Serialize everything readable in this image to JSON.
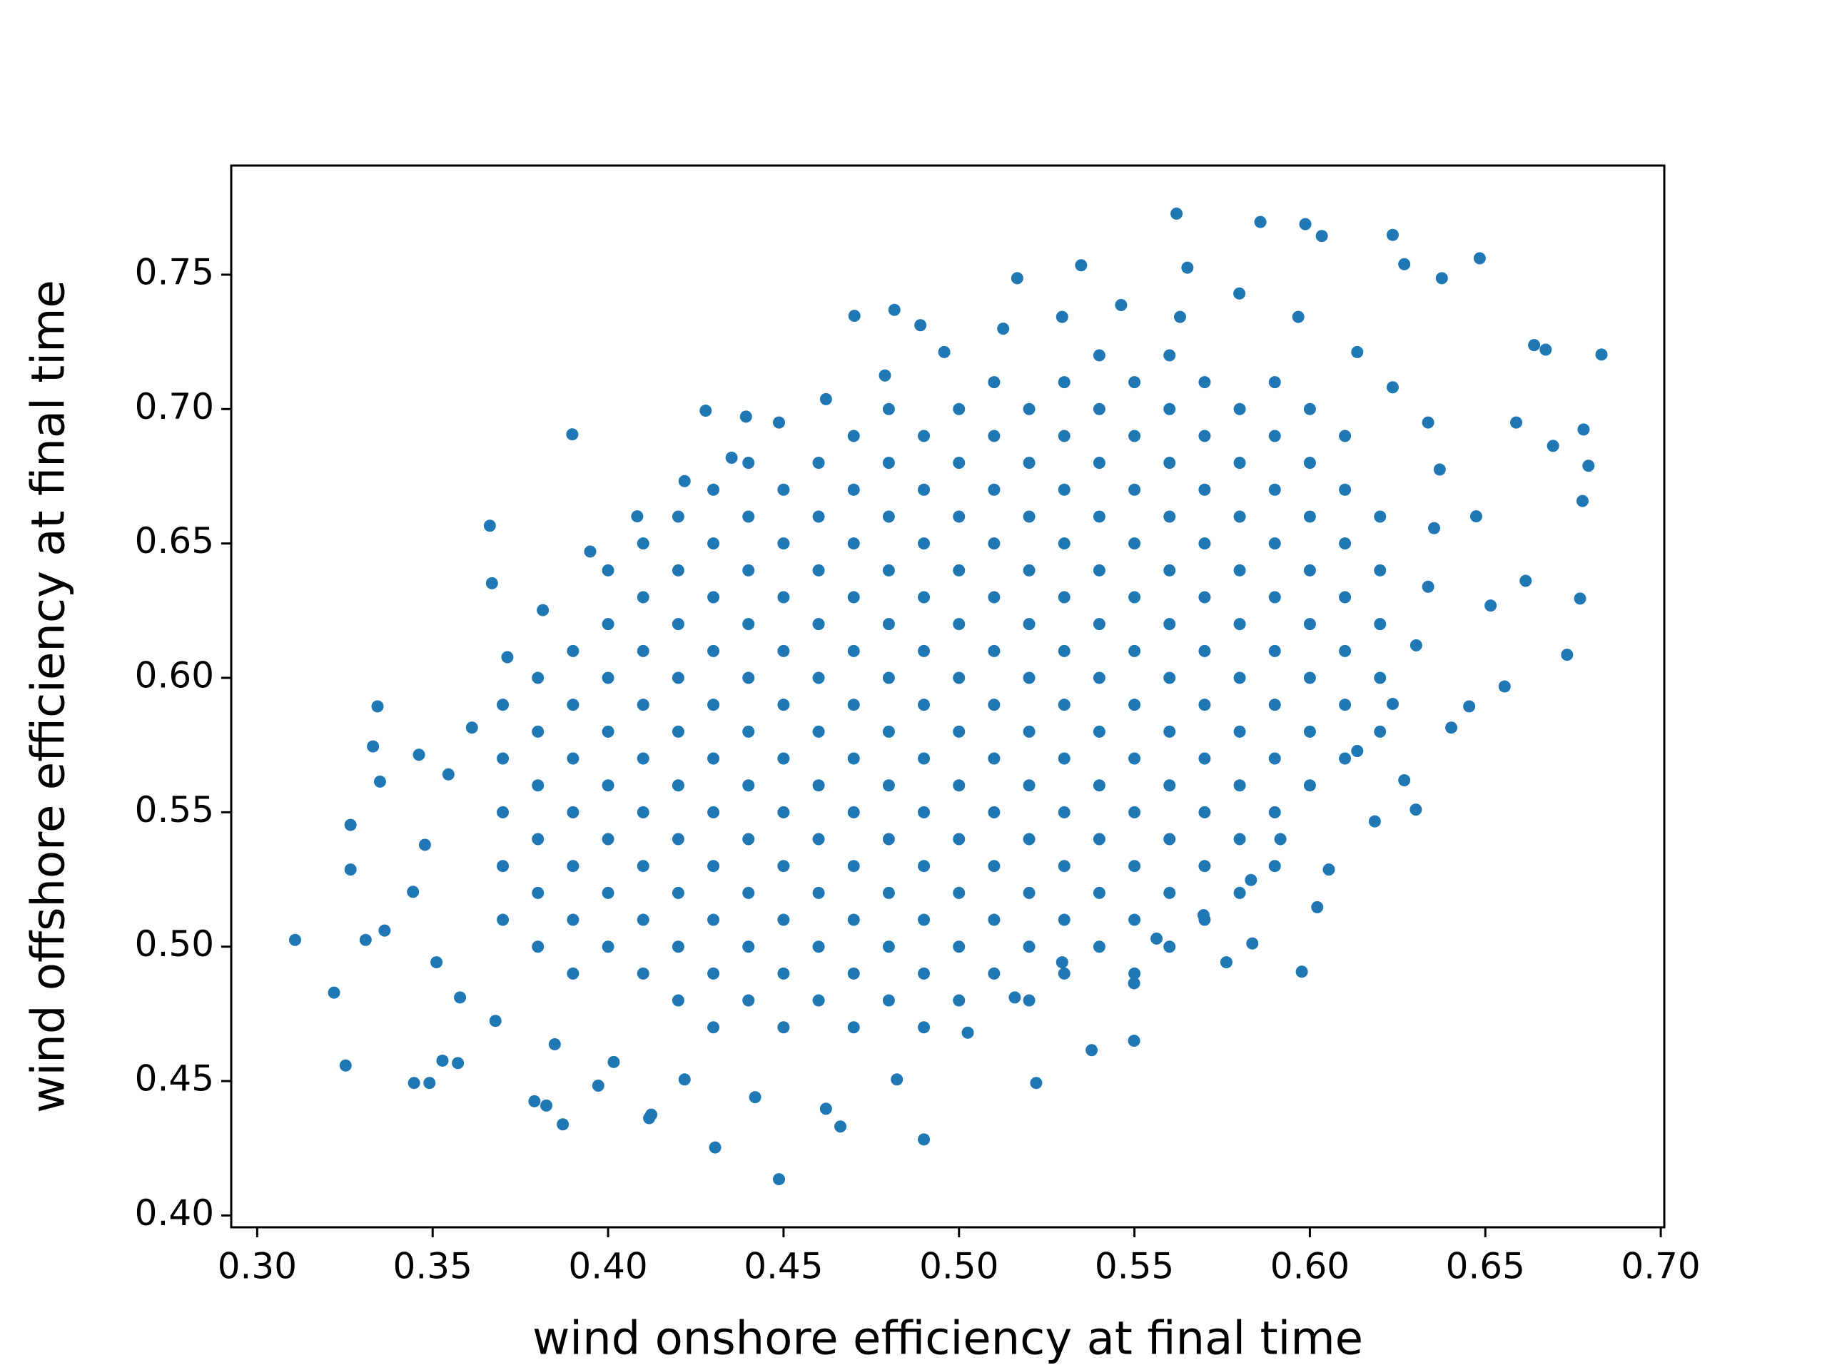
{
  "chart_data": {
    "type": "scatter",
    "x_label": "wind onshore efficiency at final time",
    "y_label": "wind offshore efficiency at final time",
    "color": "#1f77b4",
    "xlim": [
      0.2926,
      0.701
    ],
    "ylim": [
      0.3956,
      0.7906
    ],
    "xticks": [
      {
        "value": 0.3,
        "label": "0.30"
      },
      {
        "value": 0.35,
        "label": "0.35"
      },
      {
        "value": 0.4,
        "label": "0.40"
      },
      {
        "value": 0.45,
        "label": "0.45"
      },
      {
        "value": 0.5,
        "label": "0.50"
      },
      {
        "value": 0.55,
        "label": "0.55"
      },
      {
        "value": 0.6,
        "label": "0.60"
      },
      {
        "value": 0.65,
        "label": "0.65"
      },
      {
        "value": 0.7,
        "label": "0.70"
      }
    ],
    "yticks": [
      {
        "value": 0.4,
        "label": "0.40"
      },
      {
        "value": 0.45,
        "label": "0.45"
      },
      {
        "value": 0.5,
        "label": "0.50"
      },
      {
        "value": 0.55,
        "label": "0.55"
      },
      {
        "value": 0.6,
        "label": "0.60"
      },
      {
        "value": 0.65,
        "label": "0.65"
      },
      {
        "value": 0.7,
        "label": "0.70"
      },
      {
        "value": 0.75,
        "label": "0.75"
      }
    ],
    "grid": false,
    "x": [
      0.37,
      0.37,
      0.37,
      0.37,
      0.37,
      0.38,
      0.38,
      0.38,
      0.38,
      0.38,
      0.38,
      0.39,
      0.39,
      0.39,
      0.39,
      0.39,
      0.39,
      0.39,
      0.4,
      0.4,
      0.4,
      0.4,
      0.4,
      0.4,
      0.4,
      0.4,
      0.41,
      0.41,
      0.41,
      0.41,
      0.41,
      0.41,
      0.41,
      0.41,
      0.41,
      0.42,
      0.42,
      0.42,
      0.42,
      0.42,
      0.42,
      0.42,
      0.42,
      0.42,
      0.42,
      0.43,
      0.43,
      0.43,
      0.43,
      0.43,
      0.43,
      0.43,
      0.43,
      0.43,
      0.43,
      0.43,
      0.44,
      0.44,
      0.44,
      0.44,
      0.44,
      0.44,
      0.44,
      0.44,
      0.44,
      0.44,
      0.44,
      0.45,
      0.45,
      0.45,
      0.45,
      0.45,
      0.45,
      0.45,
      0.45,
      0.45,
      0.45,
      0.45,
      0.46,
      0.46,
      0.46,
      0.46,
      0.46,
      0.46,
      0.46,
      0.46,
      0.46,
      0.46,
      0.46,
      0.47,
      0.47,
      0.47,
      0.47,
      0.47,
      0.47,
      0.47,
      0.47,
      0.47,
      0.47,
      0.47,
      0.47,
      0.48,
      0.48,
      0.48,
      0.48,
      0.48,
      0.48,
      0.48,
      0.48,
      0.48,
      0.48,
      0.48,
      0.48,
      0.49,
      0.49,
      0.49,
      0.49,
      0.49,
      0.49,
      0.49,
      0.49,
      0.49,
      0.49,
      0.49,
      0.49,
      0.5,
      0.5,
      0.5,
      0.5,
      0.5,
      0.5,
      0.5,
      0.5,
      0.5,
      0.5,
      0.5,
      0.5,
      0.51,
      0.51,
      0.51,
      0.51,
      0.51,
      0.51,
      0.51,
      0.51,
      0.51,
      0.51,
      0.51,
      0.51,
      0.52,
      0.52,
      0.52,
      0.52,
      0.52,
      0.52,
      0.52,
      0.52,
      0.52,
      0.52,
      0.52,
      0.52,
      0.53,
      0.53,
      0.53,
      0.53,
      0.53,
      0.53,
      0.53,
      0.53,
      0.53,
      0.53,
      0.53,
      0.53,
      0.54,
      0.54,
      0.54,
      0.54,
      0.54,
      0.54,
      0.54,
      0.54,
      0.54,
      0.54,
      0.54,
      0.54,
      0.55,
      0.55,
      0.55,
      0.55,
      0.55,
      0.55,
      0.55,
      0.55,
      0.55,
      0.55,
      0.55,
      0.55,
      0.56,
      0.56,
      0.56,
      0.56,
      0.56,
      0.56,
      0.56,
      0.56,
      0.56,
      0.56,
      0.56,
      0.56,
      0.57,
      0.57,
      0.57,
      0.57,
      0.57,
      0.57,
      0.57,
      0.57,
      0.57,
      0.57,
      0.57,
      0.58,
      0.58,
      0.58,
      0.58,
      0.58,
      0.58,
      0.58,
      0.58,
      0.58,
      0.58,
      0.59,
      0.59,
      0.59,
      0.59,
      0.59,
      0.59,
      0.59,
      0.59,
      0.59,
      0.59,
      0.6,
      0.6,
      0.6,
      0.6,
      0.6,
      0.6,
      0.6,
      0.6,
      0.61,
      0.61,
      0.61,
      0.61,
      0.61,
      0.61,
      0.61,
      0.62,
      0.62,
      0.62,
      0.62,
      0.62,
      0.3108,
      0.3219,
      0.3252,
      0.3266,
      0.3266,
      0.3343,
      0.333,
      0.335,
      0.3309,
      0.3363,
      0.3447,
      0.3491,
      0.3461,
      0.3528,
      0.3572,
      0.3663,
      0.3669,
      0.379,
      0.3824,
      0.3871,
      0.3898,
      0.3972,
      0.4123,
      0.4117,
      0.4278,
      0.4305,
      0.4393,
      0.4487,
      0.4662,
      0.49,
      0.4702,
      0.4816,
      0.489,
      0.5166,
      0.522,
      0.5348,
      0.5378,
      0.5499,
      0.5499,
      0.562,
      0.5651,
      0.5762,
      0.5836,
      0.5859,
      0.5977,
      0.6021,
      0.5987,
      0.6034,
      0.6054,
      0.6236,
      0.6269,
      0.6376,
      0.6484,
      0.6555,
      0.6615,
      0.6639,
      0.6672,
      0.6733,
      0.677,
      0.6777,
      0.6794,
      0.6831,
      0.678,
      0.6693,
      0.6588,
      0.6454,
      0.6515,
      0.6474,
      0.6403,
      0.6302,
      0.6269,
      0.6185,
      0.5916,
      0.5832,
      0.5697,
      0.5563,
      0.5294,
      0.5159,
      0.5025,
      0.4823,
      0.4621,
      0.4419,
      0.4218,
      0.4016,
      0.3848,
      0.3679,
      0.3578,
      0.3511,
      0.3444,
      0.3478,
      0.3545,
      0.3612,
      0.3713,
      0.3814,
      0.3949,
      0.4083,
      0.4218,
      0.4352,
      0.4487,
      0.4621,
      0.4789,
      0.4958,
      0.5126,
      0.5294,
      0.5462,
      0.563,
      0.5799,
      0.5967,
      0.6135,
      0.6236,
      0.6337,
      0.637,
      0.6354,
      0.6337,
      0.6303,
      0.6236,
      0.6135
    ],
    "values": [
      0.51,
      0.53,
      0.55,
      0.57,
      0.59,
      0.5,
      0.52,
      0.54,
      0.56,
      0.58,
      0.6,
      0.49,
      0.51,
      0.53,
      0.55,
      0.57,
      0.59,
      0.61,
      0.5,
      0.52,
      0.54,
      0.56,
      0.58,
      0.6,
      0.62,
      0.64,
      0.49,
      0.51,
      0.53,
      0.55,
      0.57,
      0.59,
      0.61,
      0.63,
      0.65,
      0.48,
      0.5,
      0.52,
      0.54,
      0.56,
      0.58,
      0.6,
      0.62,
      0.64,
      0.66,
      0.47,
      0.49,
      0.51,
      0.53,
      0.55,
      0.57,
      0.59,
      0.61,
      0.63,
      0.65,
      0.67,
      0.48,
      0.5,
      0.52,
      0.54,
      0.56,
      0.58,
      0.6,
      0.62,
      0.64,
      0.66,
      0.68,
      0.47,
      0.49,
      0.51,
      0.53,
      0.55,
      0.57,
      0.59,
      0.61,
      0.63,
      0.65,
      0.67,
      0.48,
      0.5,
      0.52,
      0.54,
      0.56,
      0.58,
      0.6,
      0.62,
      0.64,
      0.66,
      0.68,
      0.47,
      0.49,
      0.51,
      0.53,
      0.55,
      0.57,
      0.59,
      0.61,
      0.63,
      0.65,
      0.67,
      0.69,
      0.48,
      0.5,
      0.52,
      0.54,
      0.56,
      0.58,
      0.6,
      0.62,
      0.64,
      0.66,
      0.68,
      0.7,
      0.47,
      0.49,
      0.51,
      0.53,
      0.55,
      0.57,
      0.59,
      0.61,
      0.63,
      0.65,
      0.67,
      0.69,
      0.48,
      0.5,
      0.52,
      0.54,
      0.56,
      0.58,
      0.6,
      0.62,
      0.64,
      0.66,
      0.68,
      0.7,
      0.49,
      0.51,
      0.53,
      0.55,
      0.57,
      0.59,
      0.61,
      0.63,
      0.65,
      0.67,
      0.69,
      0.71,
      0.48,
      0.5,
      0.52,
      0.54,
      0.56,
      0.58,
      0.6,
      0.62,
      0.64,
      0.66,
      0.68,
      0.7,
      0.49,
      0.51,
      0.53,
      0.55,
      0.57,
      0.59,
      0.61,
      0.63,
      0.65,
      0.67,
      0.69,
      0.71,
      0.5,
      0.52,
      0.54,
      0.56,
      0.58,
      0.6,
      0.62,
      0.64,
      0.66,
      0.68,
      0.7,
      0.72,
      0.49,
      0.51,
      0.53,
      0.55,
      0.57,
      0.59,
      0.61,
      0.63,
      0.65,
      0.67,
      0.69,
      0.71,
      0.5,
      0.52,
      0.54,
      0.56,
      0.58,
      0.6,
      0.62,
      0.64,
      0.66,
      0.68,
      0.7,
      0.72,
      0.51,
      0.53,
      0.55,
      0.57,
      0.59,
      0.61,
      0.63,
      0.65,
      0.67,
      0.69,
      0.71,
      0.52,
      0.54,
      0.56,
      0.58,
      0.6,
      0.62,
      0.64,
      0.66,
      0.68,
      0.7,
      0.53,
      0.55,
      0.57,
      0.59,
      0.61,
      0.63,
      0.65,
      0.67,
      0.69,
      0.71,
      0.56,
      0.58,
      0.6,
      0.62,
      0.64,
      0.66,
      0.68,
      0.7,
      0.57,
      0.59,
      0.61,
      0.63,
      0.65,
      0.67,
      0.69,
      0.58,
      0.6,
      0.62,
      0.64,
      0.66,
      0.5025,
      0.4829,
      0.4558,
      0.5453,
      0.5287,
      0.5894,
      0.5745,
      0.5614,
      0.5025,
      0.506,
      0.4493,
      0.4493,
      0.5714,
      0.4576,
      0.4567,
      0.6566,
      0.6352,
      0.4425,
      0.4409,
      0.4339,
      0.6906,
      0.4483,
      0.4375,
      0.4362,
      0.6994,
      0.4253,
      0.6972,
      0.4135,
      0.4331,
      0.4283,
      0.7347,
      0.7369,
      0.7312,
      0.7487,
      0.4493,
      0.7535,
      0.4615,
      0.465,
      0.4864,
      0.7727,
      0.7526,
      0.4942,
      0.5012,
      0.7696,
      0.4907,
      0.5147,
      0.7688,
      0.7644,
      0.5287,
      0.7648,
      0.7539,
      0.7487,
      0.7561,
      0.5968,
      0.6361,
      0.7238,
      0.7221,
      0.6086,
      0.6295,
      0.6658,
      0.6789,
      0.7203,
      0.6924,
      0.6863,
      0.695,
      0.5894,
      0.6269,
      0.6601,
      0.5815,
      0.551,
      0.5619,
      0.5466,
      0.54,
      0.5248,
      0.5117,
      0.503,
      0.4942,
      0.4811,
      0.468,
      0.4506,
      0.4397,
      0.444,
      0.4506,
      0.4571,
      0.4637,
      0.4724,
      0.4811,
      0.4942,
      0.5204,
      0.5379,
      0.5641,
      0.5815,
      0.6077,
      0.6252,
      0.647,
      0.6601,
      0.6732,
      0.6819,
      0.695,
      0.7037,
      0.7125,
      0.7212,
      0.7299,
      0.7343,
      0.7387,
      0.7343,
      0.743,
      0.7343,
      0.7212,
      0.7081,
      0.695,
      0.6775,
      0.6557,
      0.6339,
      0.6121,
      0.5903,
      0.5728
    ]
  }
}
